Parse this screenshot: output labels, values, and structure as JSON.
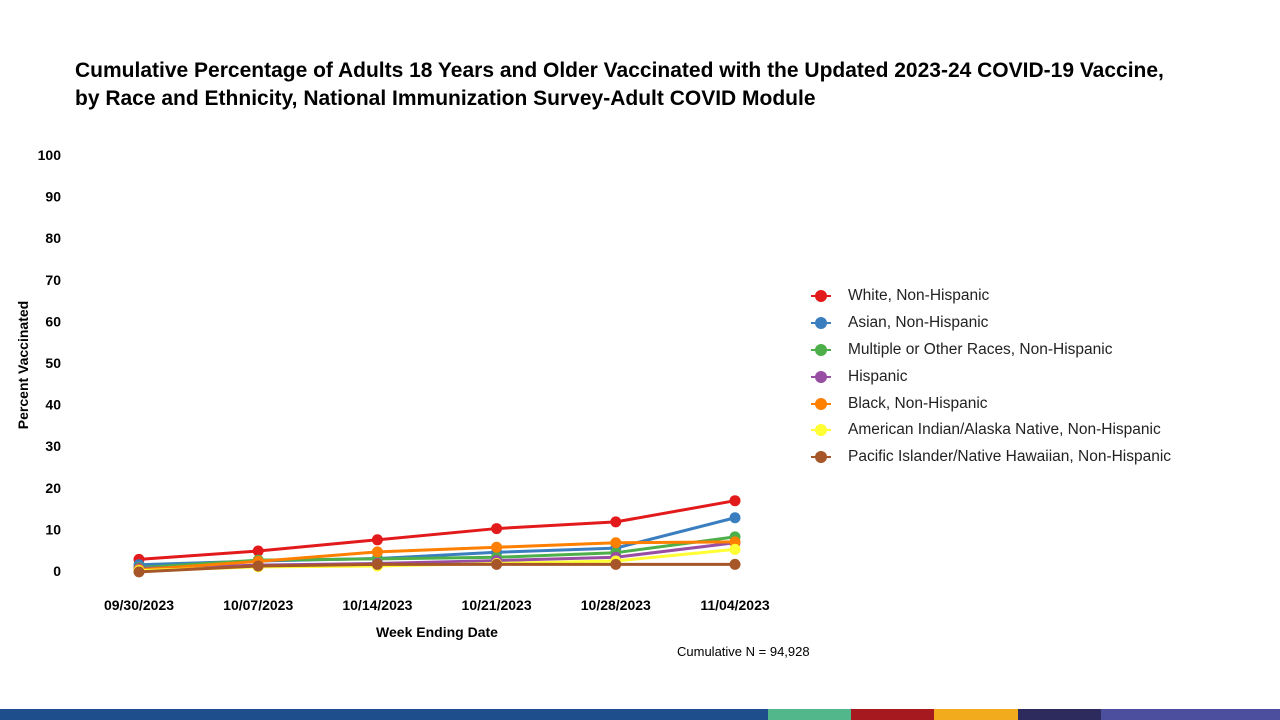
{
  "title_lines": [
    "Cumulative Percentage of Adults 18 Years and Older Vaccinated with the Updated 2023-24 COVID-19 Vaccine,",
    "by Race and Ethnicity, National Immunization Survey-Adult COVID Module"
  ],
  "footnote": "Cumulative N = 94,928",
  "chart_data": {
    "type": "line",
    "title": "Cumulative Percentage of Adults 18 Years and Older Vaccinated with the Updated 2023-24 COVID-19 Vaccine, by Race and Ethnicity, National Immunization Survey-Adult COVID Module",
    "xlabel": "Week Ending Date",
    "ylabel": "Percent Vaccinated",
    "x": [
      "09/30/2023",
      "10/07/2023",
      "10/14/2023",
      "10/21/2023",
      "10/28/2023",
      "11/04/2023"
    ],
    "ylim": [
      0,
      100
    ],
    "yticks": [
      0,
      10,
      20,
      30,
      40,
      50,
      60,
      70,
      80,
      90,
      100
    ],
    "grid": false,
    "legend_position": "right",
    "series": [
      {
        "name": "White, Non-Hispanic",
        "color": "#e31a1c",
        "values": [
          2.8,
          4.8,
          7.5,
          10.2,
          11.8,
          16.9
        ]
      },
      {
        "name": "Asian, Non-Hispanic",
        "color": "#3a7ebf",
        "values": [
          1.5,
          2.4,
          3.0,
          4.5,
          5.5,
          12.8
        ]
      },
      {
        "name": "Multiple or Other Races, Non-Hispanic",
        "color": "#4daf4a",
        "values": [
          0.8,
          2.6,
          2.9,
          3.3,
          4.4,
          8.2
        ]
      },
      {
        "name": "Hispanic",
        "color": "#984ea3",
        "values": [
          0.6,
          1.4,
          1.8,
          2.5,
          3.3,
          6.8
        ]
      },
      {
        "name": "Black, Non-Hispanic",
        "color": "#ff7f00",
        "values": [
          0.3,
          2.3,
          4.6,
          5.7,
          6.8,
          7.0
        ]
      },
      {
        "name": "American Indian/Alaska Native, Non-Hispanic",
        "color": "#ffff33",
        "values": [
          0.1,
          1.0,
          1.2,
          1.8,
          2.4,
          5.2
        ]
      },
      {
        "name": "Pacific Islander/Native Hawaiian, Non-Hispanic",
        "color": "#a65628",
        "values": [
          -0.2,
          1.2,
          1.6,
          1.6,
          1.6,
          1.6
        ]
      }
    ]
  },
  "bottom_bar_colors": [
    {
      "color": "#1f4e8c",
      "share": 0.6
    },
    {
      "color": "#52b88c",
      "share": 0.065
    },
    {
      "color": "#a6191e",
      "share": 0.065
    },
    {
      "color": "#f2ab1c",
      "share": 0.065
    },
    {
      "color": "#2d2a5e",
      "share": 0.065
    },
    {
      "color": "#4b4f9e",
      "share": 0.14
    }
  ]
}
